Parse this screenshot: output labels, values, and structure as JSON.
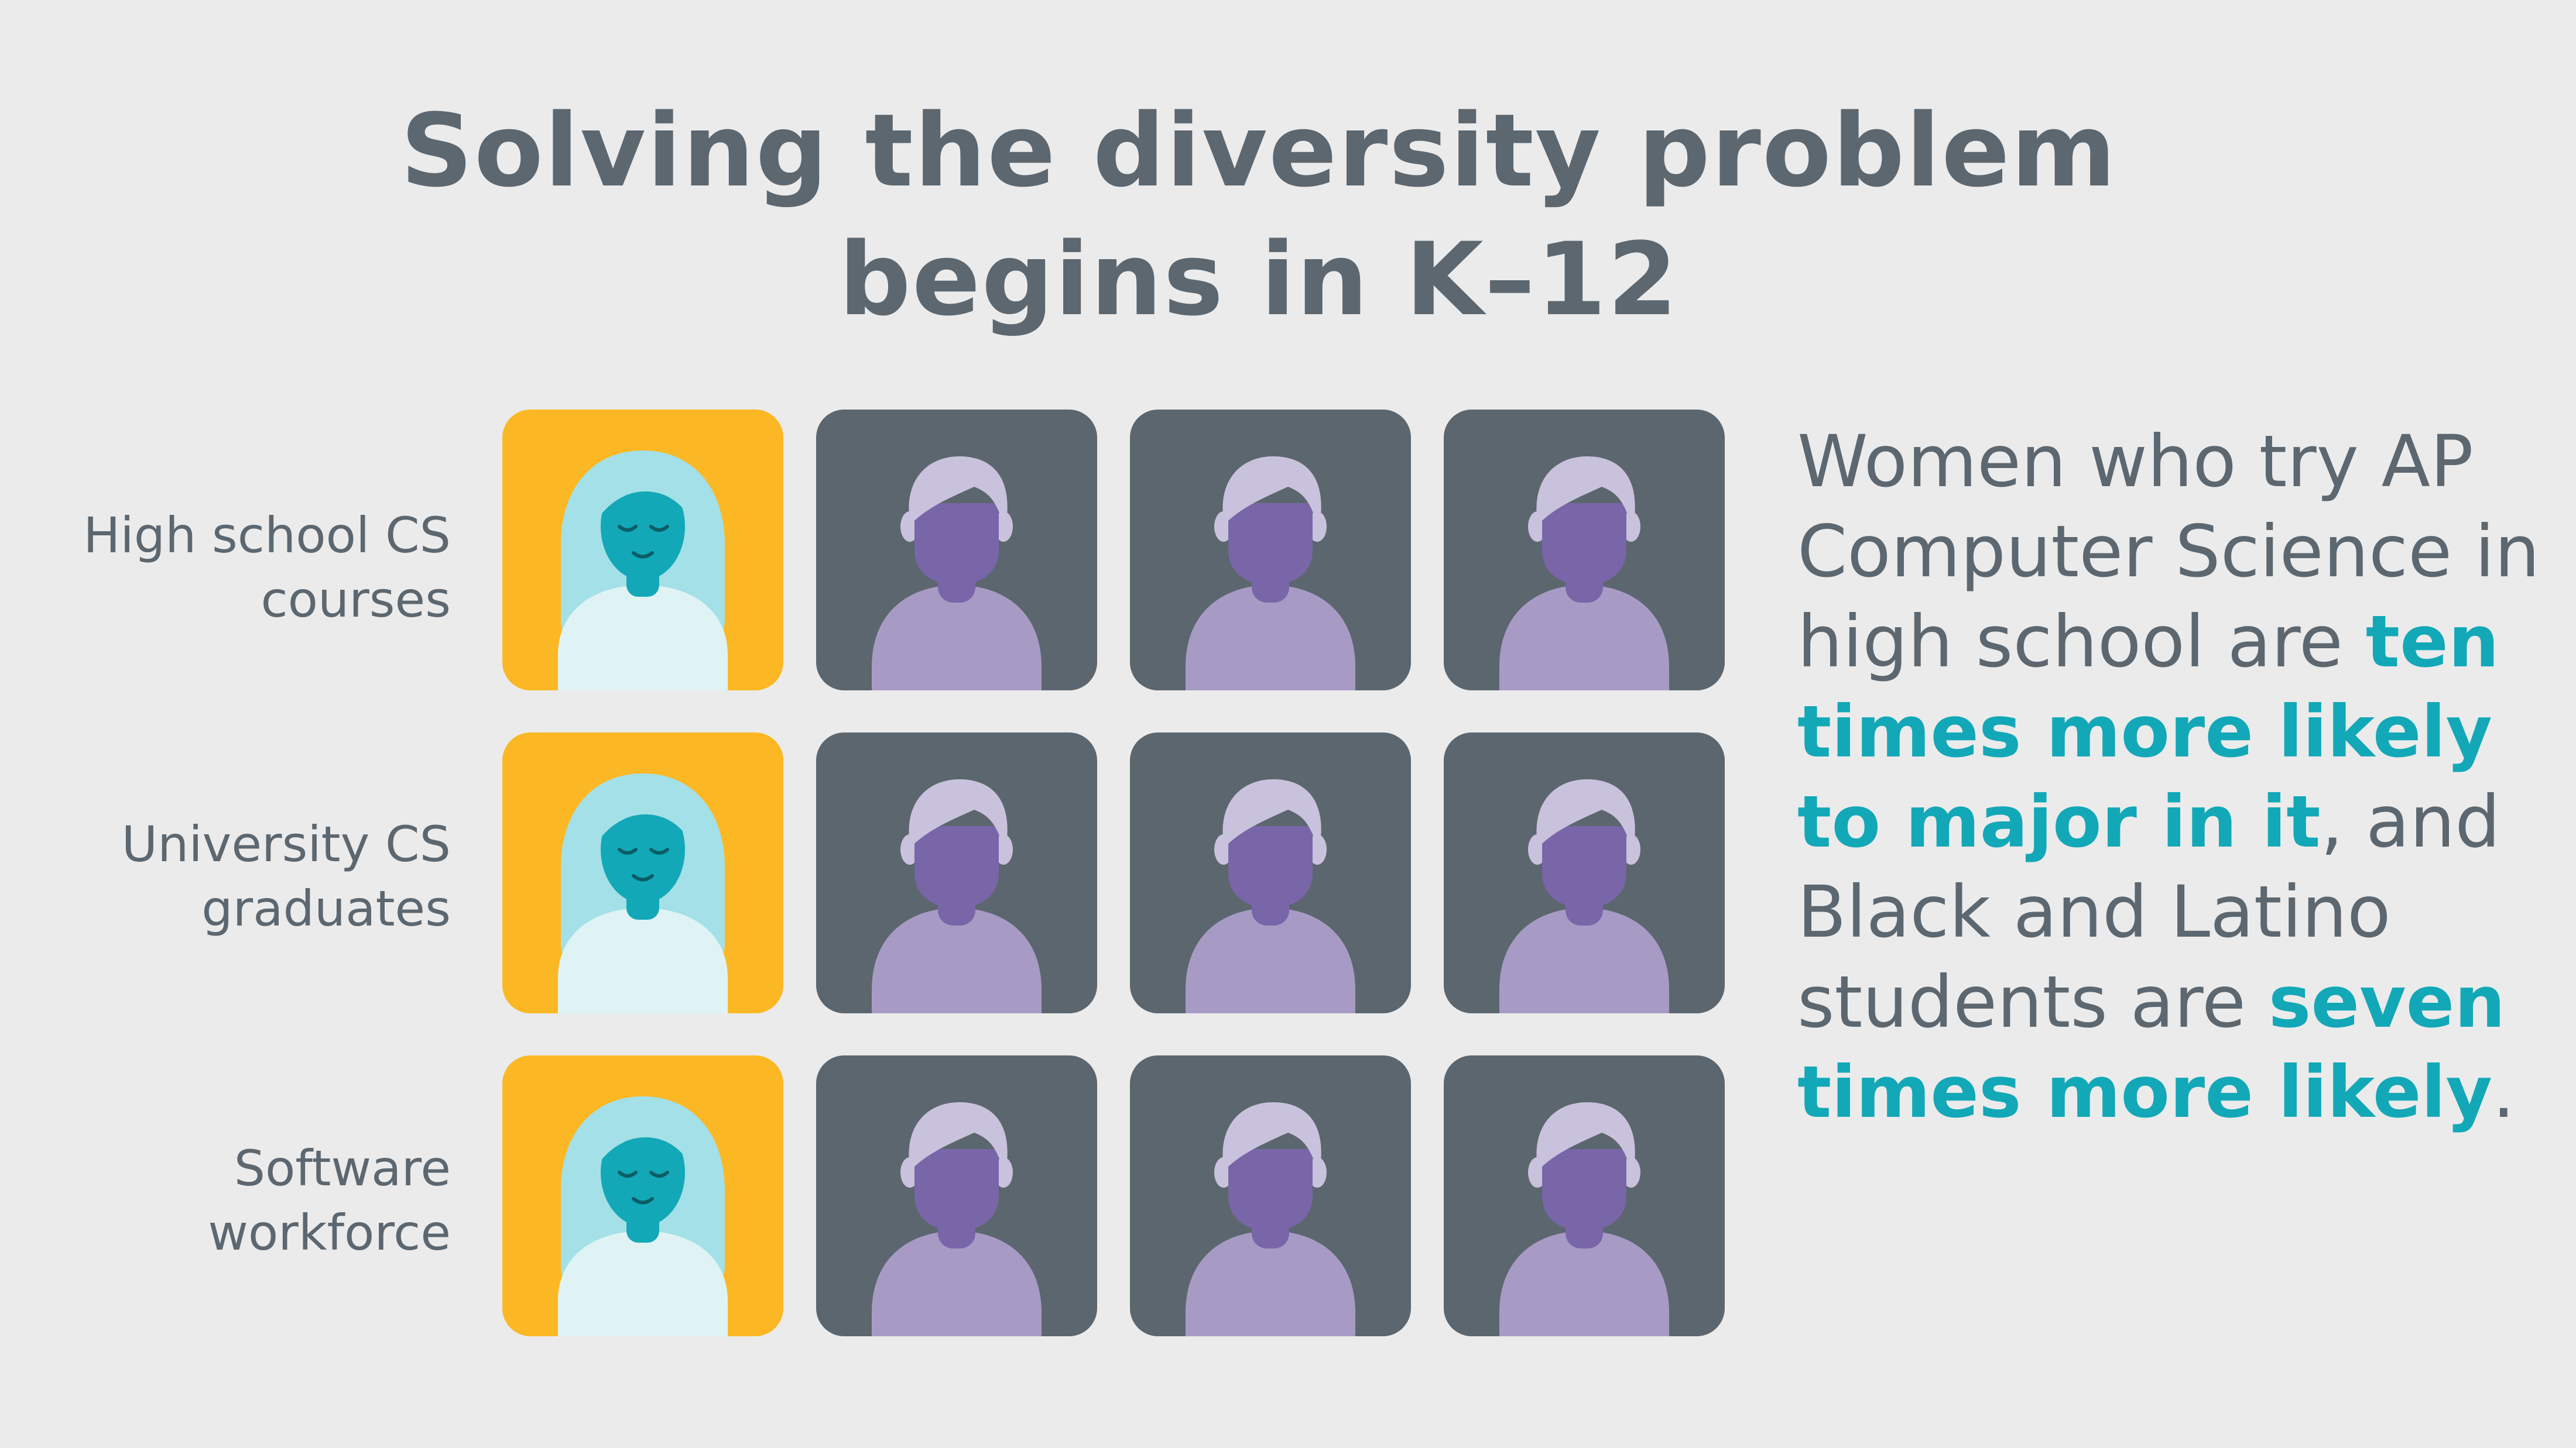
{
  "title": {
    "line1": "Solving the diversity problem",
    "line2": "begins in K–12"
  },
  "rows": [
    {
      "label_line1": "High school CS",
      "label_line2": "courses"
    },
    {
      "label_line1": "University CS",
      "label_line2": "graduates"
    },
    {
      "label_line1": "Software",
      "label_line2": "workforce"
    }
  ],
  "grid": {
    "tiles_per_row": 4,
    "woman_tiles_per_row": 1,
    "man_tiles_per_row": 3
  },
  "icons": {
    "woman": "woman-avatar-icon",
    "man": "man-avatar-icon"
  },
  "colors": {
    "background": "#ebebeb",
    "title_text": "#5c6770",
    "highlight": "#12a8b7",
    "woman_tile": "#fbb824",
    "man_tile": "#5c666e",
    "woman_hair": "#a4e0e7",
    "woman_face": "#12a8b7",
    "woman_shirt": "#dff3f5",
    "man_hair": "#c9c2dc",
    "man_face": "#7866a8",
    "man_shirt": "#a79bc6"
  },
  "statement": {
    "part1": "Women who try AP Computer Science in high school are ",
    "highlight1": "ten times more likely to major in it",
    "part2": ", and Black and Latino students are ",
    "highlight2": "seven times more likely",
    "part3": "."
  }
}
